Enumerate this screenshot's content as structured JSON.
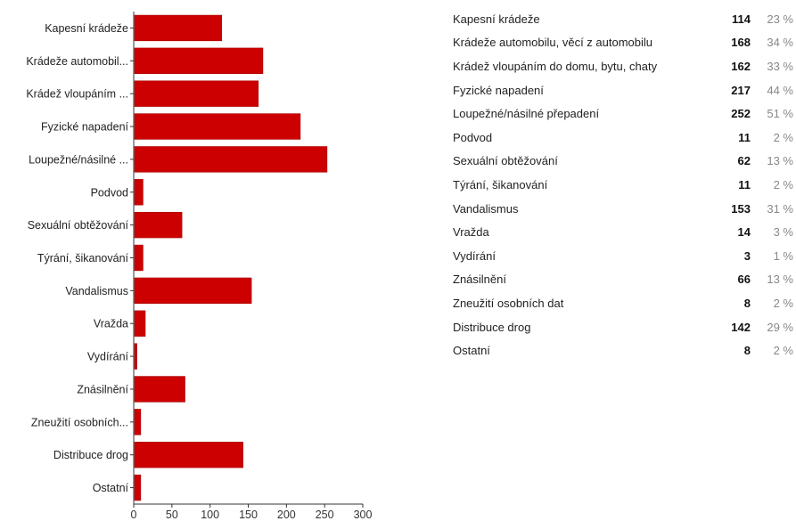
{
  "chart_data": {
    "type": "bar",
    "orientation": "horizontal",
    "categories": [
      "Kapesní krádeže",
      "Krádeže automobil...",
      "Krádež vloupáním ...",
      "Fyzické napadení",
      "Loupežné/násilné ...",
      "Podvod",
      "Sexuální obtěžování",
      "Týrání, šikanování",
      "Vandalismus",
      "Vražda",
      "Vydírání",
      "Znásilnění",
      "Zneužití osobních...",
      "Distribuce drog",
      "Ostatní"
    ],
    "values": [
      114,
      168,
      162,
      217,
      252,
      11,
      62,
      11,
      153,
      14,
      3,
      66,
      8,
      142,
      8
    ],
    "x_ticks": [
      "0",
      "50",
      "100",
      "150",
      "200",
      "250",
      "300"
    ],
    "xlim": [
      0,
      300
    ],
    "title": "",
    "xlabel": "",
    "ylabel": "",
    "bar_color": "#cc0000",
    "grid": false
  },
  "summary": {
    "rows": [
      {
        "label": "Kapesní krádeže",
        "count": "114",
        "percent": "23 %"
      },
      {
        "label": "Krádeže automobilu, věcí z automobilu",
        "count": "168",
        "percent": "34 %"
      },
      {
        "label": "Krádež vloupáním do domu, bytu, chaty",
        "count": "162",
        "percent": "33 %"
      },
      {
        "label": "Fyzické napadení",
        "count": "217",
        "percent": "44 %"
      },
      {
        "label": "Loupežné/násilné přepadení",
        "count": "252",
        "percent": "51 %"
      },
      {
        "label": "Podvod",
        "count": "11",
        "percent": "2 %"
      },
      {
        "label": "Sexuální obtěžování",
        "count": "62",
        "percent": "13 %"
      },
      {
        "label": "Týrání, šikanování",
        "count": "11",
        "percent": "2 %"
      },
      {
        "label": "Vandalismus",
        "count": "153",
        "percent": "31 %"
      },
      {
        "label": "Vražda",
        "count": "14",
        "percent": "3 %"
      },
      {
        "label": "Vydírání",
        "count": "3",
        "percent": "1 %"
      },
      {
        "label": "Znásilnění",
        "count": "66",
        "percent": "13 %"
      },
      {
        "label": "Zneužití osobních dat",
        "count": "8",
        "percent": "2 %"
      },
      {
        "label": "Distribuce drog",
        "count": "142",
        "percent": "29 %"
      },
      {
        "label": "Ostatní",
        "count": "8",
        "percent": "2 %"
      }
    ]
  }
}
